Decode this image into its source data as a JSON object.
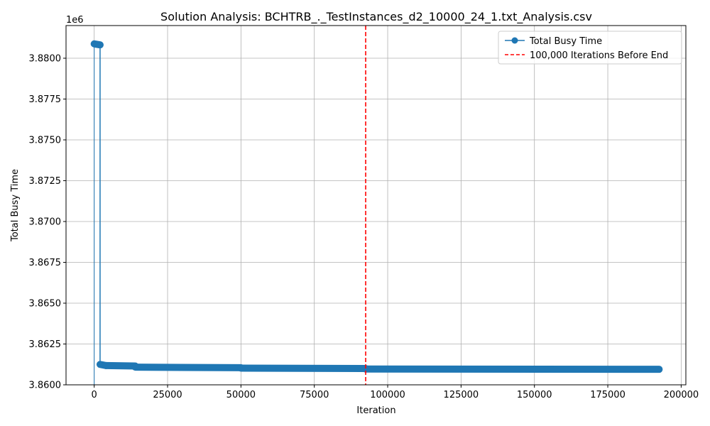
{
  "chart_data": {
    "type": "line",
    "title": "Solution Analysis: BCHTRB_._TestInstances_d2_10000_24_1.txt_Analysis.csv",
    "xlabel": "Iteration",
    "ylabel": "Total Busy Time",
    "y_offset_label": "1e6",
    "xlim": [
      -9600,
      201600
    ],
    "ylim": [
      3.86,
      3.882
    ],
    "xticks": [
      0,
      25000,
      50000,
      75000,
      100000,
      125000,
      150000,
      175000,
      200000
    ],
    "xtick_labels": [
      "0",
      "25000",
      "50000",
      "75000",
      "100000",
      "125000",
      "150000",
      "175000",
      "200000"
    ],
    "yticks": [
      3.86,
      3.8625,
      3.865,
      3.8675,
      3.87,
      3.8725,
      3.875,
      3.8775,
      3.88
    ],
    "ytick_labels": [
      "3.8600",
      "3.8625",
      "3.8650",
      "3.8675",
      "3.8700",
      "3.8725",
      "3.8750",
      "3.8775",
      "3.8800"
    ],
    "grid": true,
    "legend_position": "top-right",
    "series": [
      {
        "name": "Total Busy Time",
        "color": "#1f77b4",
        "marker": "circle",
        "segments": [
          {
            "x0": 0,
            "x1": 2000,
            "y0": 3.88088,
            "y1": 3.88082
          },
          {
            "x0": 2000,
            "x1": 4000,
            "y0": 3.86125,
            "y1": 3.86118
          },
          {
            "x0": 4000,
            "x1": 14000,
            "y0": 3.86118,
            "y1": 3.86115
          },
          {
            "x0": 14000,
            "x1": 50000,
            "y0": 3.86108,
            "y1": 3.86105
          },
          {
            "x0": 50000,
            "x1": 92500,
            "y0": 3.86102,
            "y1": 3.861
          },
          {
            "x0": 92500,
            "x1": 192500,
            "y0": 3.86097,
            "y1": 3.86095
          }
        ],
        "drop": {
          "x": 2000,
          "y_from": 3.88082,
          "y_to": 3.86125
        },
        "start_tick": {
          "x": 0,
          "y_from": 3.86,
          "y_to": 3.88088
        }
      }
    ],
    "reference_lines": [
      {
        "name": "100,000 Iterations Before End",
        "x": 92500,
        "color": "#ff0000",
        "style": "dashed"
      }
    ]
  }
}
